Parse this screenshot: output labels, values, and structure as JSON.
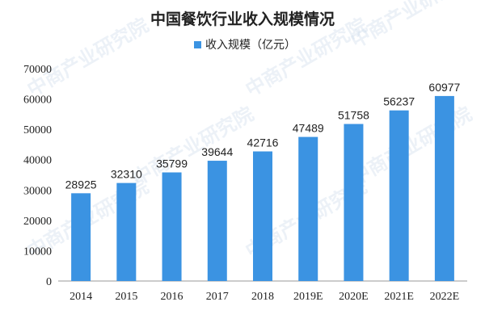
{
  "chart_data": {
    "type": "bar",
    "title": "中国餐饮行业收入规模情况",
    "legend": "收入规模（亿元）",
    "categories": [
      "2014",
      "2015",
      "2016",
      "2017",
      "2018",
      "2019E",
      "2020E",
      "2021E",
      "2022E"
    ],
    "series": [
      {
        "name": "收入规模（亿元）",
        "values": [
          28925,
          32310,
          35799,
          39644,
          42716,
          47489,
          51758,
          56237,
          60977
        ]
      }
    ],
    "ylim": [
      0,
      70000
    ],
    "yticks": [
      0,
      10000,
      20000,
      30000,
      40000,
      50000,
      60000,
      70000
    ],
    "grid": false,
    "legend_position": "top",
    "bar_color": "#3b93e2"
  },
  "watermark": "中商产业研究院"
}
